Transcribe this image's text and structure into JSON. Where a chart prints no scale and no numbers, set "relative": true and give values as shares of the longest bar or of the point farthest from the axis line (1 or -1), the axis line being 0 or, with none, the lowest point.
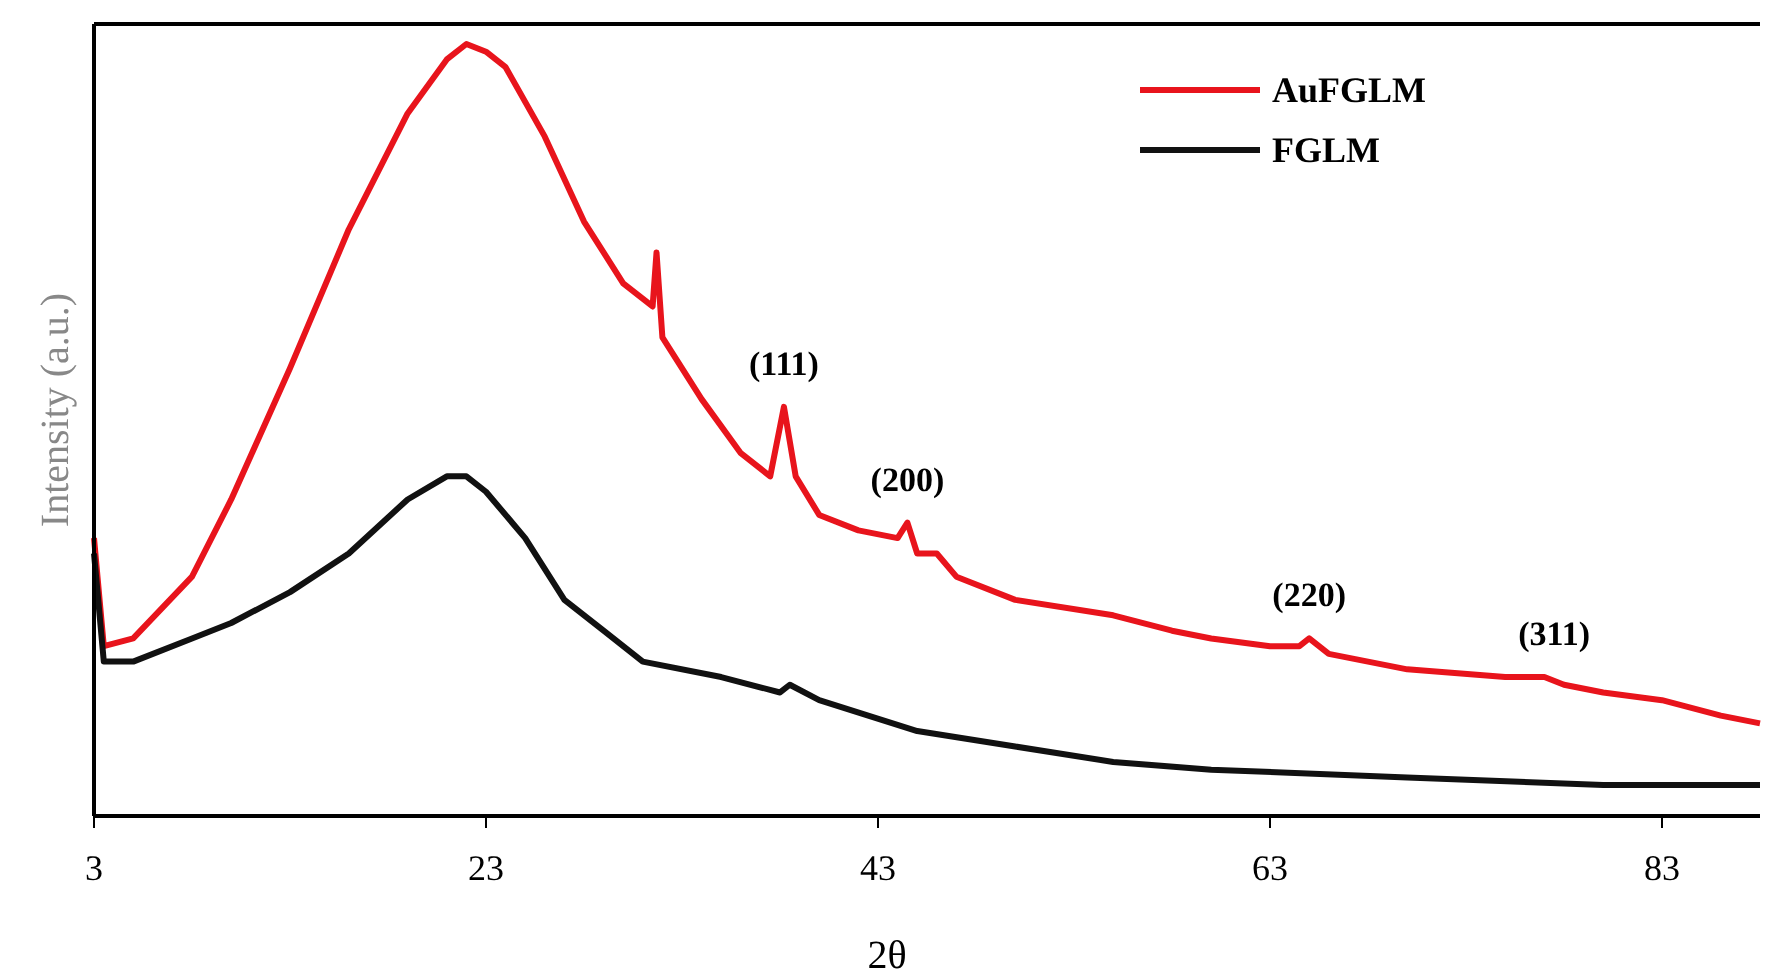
{
  "chart_data": {
    "type": "line",
    "relative": true,
    "xlabel": "2θ",
    "ylabel": "Intensity (a.u.)",
    "xlim": [
      3,
      88
    ],
    "xticks": [
      3,
      23,
      43,
      63,
      83
    ],
    "legend": "top right",
    "grid": false,
    "line_style": "solid",
    "annotations": [
      {
        "text": "(111)",
        "x": 38.2,
        "y": 0.53
      },
      {
        "text": "(200)",
        "x": 44.5,
        "y": 0.38
      },
      {
        "text": "(220)",
        "x": 65,
        "y": 0.23
      },
      {
        "text": "(311)",
        "x": 77.5,
        "y": 0.18
      }
    ],
    "series": [
      {
        "name": "AuFGLM",
        "color": "#e8141c",
        "x": [
          3,
          3.5,
          5,
          8,
          10,
          13,
          16,
          19,
          21,
          22,
          23,
          24,
          26,
          28,
          30,
          31.5,
          31.7,
          32,
          34,
          36,
          37.5,
          38.2,
          38.8,
          40,
          42,
          44,
          44.5,
          45,
          46,
          47,
          50,
          55,
          58,
          60,
          63,
          64.5,
          65,
          66,
          70,
          75,
          77,
          78,
          80,
          83,
          86,
          88
        ],
        "values": [
          0.36,
          0.22,
          0.23,
          0.31,
          0.41,
          0.58,
          0.76,
          0.91,
          0.98,
          1.0,
          0.99,
          0.97,
          0.88,
          0.77,
          0.69,
          0.66,
          0.73,
          0.62,
          0.54,
          0.47,
          0.44,
          0.53,
          0.44,
          0.39,
          0.37,
          0.36,
          0.38,
          0.34,
          0.34,
          0.31,
          0.28,
          0.26,
          0.24,
          0.23,
          0.22,
          0.22,
          0.23,
          0.21,
          0.19,
          0.18,
          0.18,
          0.17,
          0.16,
          0.15,
          0.13,
          0.12
        ]
      },
      {
        "name": "FGLM",
        "color": "#111111",
        "x": [
          3,
          3.5,
          5,
          8,
          10,
          13,
          16,
          19,
          21,
          22,
          23,
          25,
          27,
          29,
          31,
          35,
          38,
          38.5,
          40,
          45,
          50,
          55,
          60,
          70,
          80,
          88
        ],
        "values": [
          0.34,
          0.2,
          0.2,
          0.23,
          0.25,
          0.29,
          0.34,
          0.41,
          0.44,
          0.44,
          0.42,
          0.36,
          0.28,
          0.24,
          0.2,
          0.18,
          0.16,
          0.17,
          0.15,
          0.11,
          0.09,
          0.07,
          0.06,
          0.05,
          0.04,
          0.04
        ]
      }
    ]
  }
}
